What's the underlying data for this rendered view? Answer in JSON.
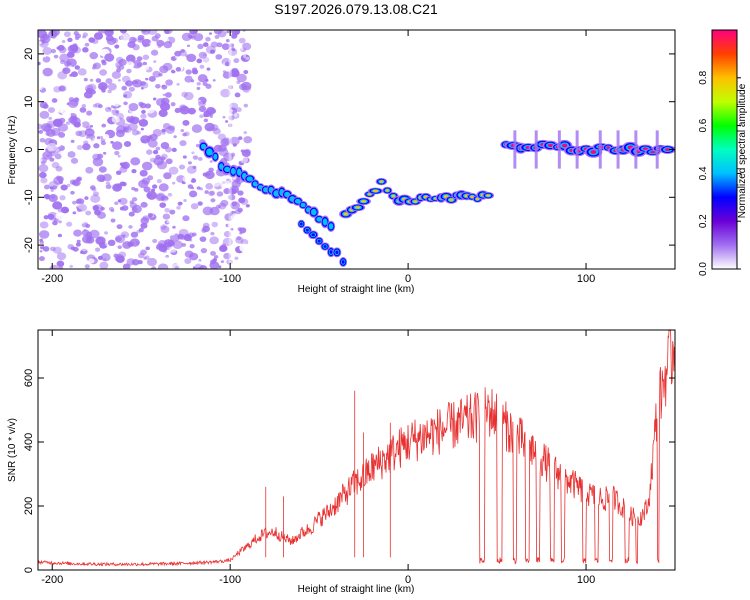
{
  "title": "S197.2026.079.13.08.C21",
  "chart_data": [
    {
      "type": "heatmap",
      "name": "spectrogram",
      "xlabel": "Height of straight line (km)",
      "ylabel": "Frequency (Hz)",
      "xlim": [
        -208,
        150
      ],
      "ylim": [
        -25,
        25
      ],
      "x_ticks": [
        -200,
        -100,
        0,
        100
      ],
      "y_ticks": [
        -20,
        -10,
        0,
        10,
        20
      ],
      "colorbar": {
        "label": "Normalized spectral amplitude",
        "range": [
          0,
          1
        ],
        "ticks": [
          0.0,
          0.2,
          0.4,
          0.6,
          0.8
        ],
        "tick_labels": [
          "0.0",
          "0.2",
          "0.4",
          "0.6",
          "0.8"
        ],
        "colormap": [
          "#ffffff",
          "#a070f0",
          "#6a00d8",
          "#0000ff",
          "#00c0ff",
          "#00ffc0",
          "#00ff00",
          "#c0ff00",
          "#ffc000",
          "#ff4000",
          "#ff0080"
        ]
      },
      "features": [
        {
          "name": "noise",
          "x_range": [
            -208,
            -100
          ],
          "f_range": [
            -25,
            25
          ],
          "level": 0.12
        },
        {
          "name": "upper-descending-track",
          "points": [
            [
              -115,
              1
            ],
            [
              -105,
              -3
            ],
            [
              -95,
              -5
            ],
            [
              -80,
              -8
            ],
            [
              -65,
              -10
            ],
            [
              -50,
              -14
            ],
            [
              -40,
              -17
            ]
          ],
          "level": 0.4
        },
        {
          "name": "lower-descending-track",
          "points": [
            [
              -60,
              -15
            ],
            [
              -50,
              -19
            ],
            [
              -40,
              -22
            ],
            [
              -33,
              -25
            ]
          ],
          "level": 0.35
        },
        {
          "name": "middle-track",
          "points": [
            [
              -35,
              -13
            ],
            [
              -25,
              -11
            ],
            [
              -15,
              -7
            ],
            [
              -5,
              -11
            ],
            [
              10,
              -10
            ],
            [
              30,
              -10
            ],
            [
              48,
              -10
            ]
          ],
          "level": 0.75
        },
        {
          "name": "right-track",
          "points": [
            [
              55,
              1
            ],
            [
              80,
              0.5
            ],
            [
              100,
              0
            ],
            [
              125,
              0
            ],
            [
              150,
              0
            ]
          ],
          "level": 0.95
        }
      ]
    },
    {
      "type": "line",
      "name": "snr",
      "xlabel": "Height of straight line (km)",
      "ylabel": "SNR (10 * v/v)",
      "xlim": [
        -208,
        150
      ],
      "ylim": [
        0,
        750
      ],
      "x_ticks": [
        -200,
        -100,
        0,
        100
      ],
      "y_ticks": [
        0,
        200,
        400,
        600
      ],
      "color": "#e83030",
      "series": [
        {
          "name": "SNR",
          "x": [
            -208,
            -190,
            -170,
            -150,
            -130,
            -110,
            -100,
            -95,
            -90,
            -85,
            -80,
            -75,
            -70,
            -65,
            -60,
            -55,
            -50,
            -45,
            -40,
            -35,
            -30,
            -25,
            -20,
            -15,
            -10,
            -5,
            0,
            5,
            10,
            15,
            20,
            25,
            30,
            35,
            40,
            45,
            50,
            55,
            60,
            65,
            70,
            75,
            80,
            85,
            90,
            95,
            100,
            105,
            110,
            115,
            120,
            125,
            130,
            135,
            140,
            145,
            150
          ],
          "y": [
            25,
            20,
            18,
            18,
            20,
            25,
            30,
            55,
            75,
            100,
            115,
            120,
            100,
            90,
            115,
            130,
            160,
            180,
            210,
            240,
            270,
            290,
            320,
            340,
            360,
            380,
            400,
            410,
            420,
            430,
            440,
            450,
            460,
            470,
            480,
            500,
            480,
            450,
            420,
            400,
            380,
            350,
            320,
            300,
            280,
            260,
            240,
            230,
            220,
            230,
            200,
            170,
            160,
            200,
            500,
            620,
            710
          ]
        }
      ]
    }
  ]
}
